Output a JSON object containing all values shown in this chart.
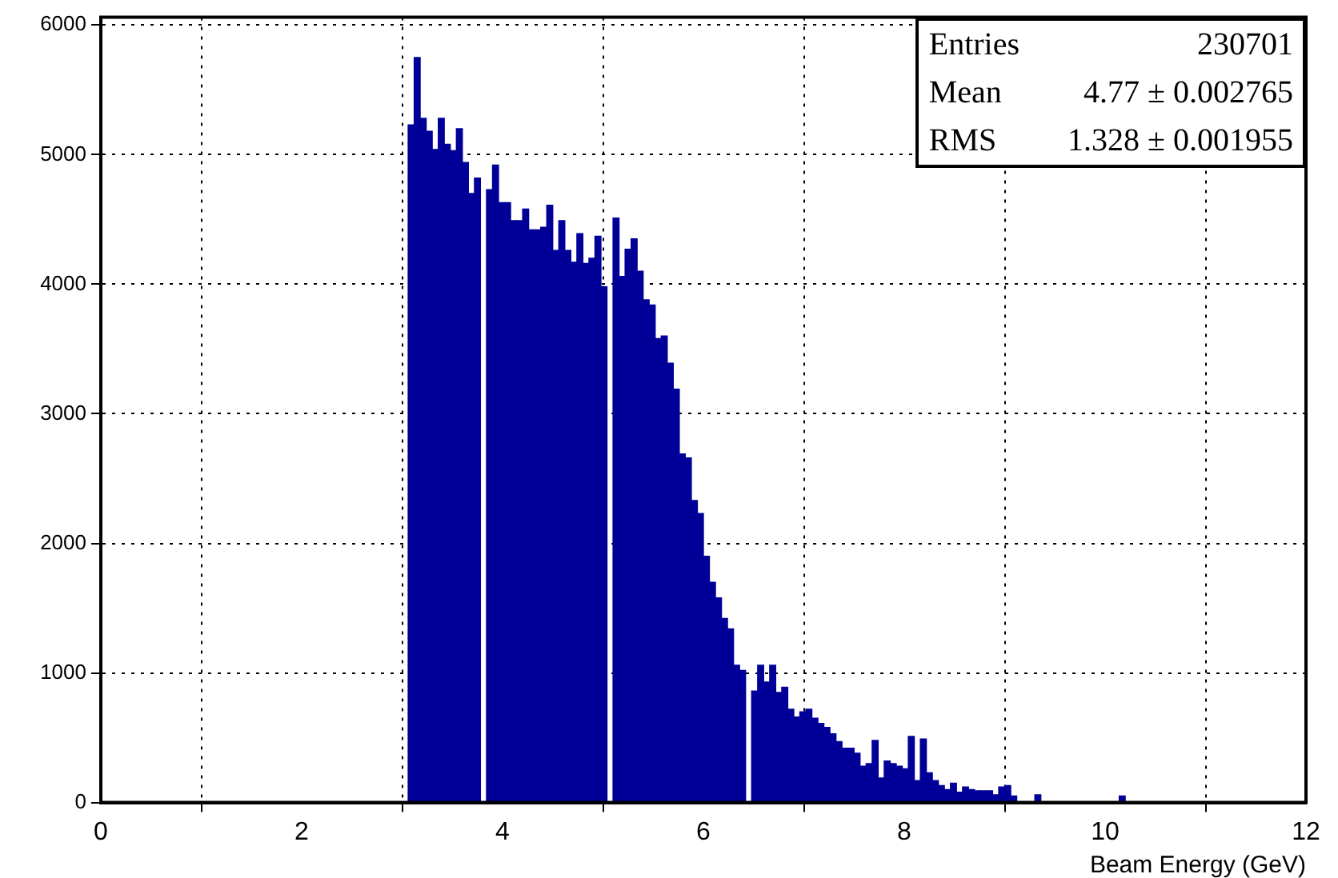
{
  "chart_data": {
    "type": "histogram",
    "xlabel": "Beam Energy (GeV)",
    "annotations": [
      "Entries",
      "230701",
      "Mean",
      "4.77 ± 0.002765",
      "RMS",
      "1.328 ± 0.001955"
    ],
    "color": "#000099",
    "bins": [
      3.06,
      3.12,
      3.18,
      3.24,
      3.3,
      3.36,
      3.42,
      3.48,
      3.54,
      3.6,
      3.66,
      3.72,
      3.78,
      3.84,
      3.9,
      3.96,
      4.02,
      4.08,
      4.14,
      4.2,
      4.26,
      4.32,
      4.38,
      4.44,
      4.5,
      4.56,
      4.62,
      4.68,
      4.74,
      4.8,
      4.86,
      4.92,
      4.98,
      5.04,
      5.1,
      5.16,
      5.22,
      5.28,
      5.34,
      5.4,
      5.46,
      5.52,
      5.58,
      5.64,
      5.7,
      5.76,
      5.82,
      5.88,
      5.94,
      6,
      6.06,
      6.12,
      6.18,
      6.24,
      6.3,
      6.36,
      6.42,
      6.48,
      6.54,
      6.6,
      6.66,
      6.72,
      6.78,
      6.84,
      6.9,
      6.96,
      7.02,
      7.08,
      7.14,
      7.2,
      7.26,
      7.32,
      7.38,
      7.44,
      7.5,
      7.56,
      7.62,
      7.68,
      7.74,
      7.8,
      7.86,
      7.92,
      7.98,
      8.04,
      8.1,
      8.16,
      8.22,
      8.28,
      8.34,
      8.4,
      8.46,
      8.52,
      8.58,
      8.64,
      8.7,
      8.76,
      8.82,
      8.88,
      8.94,
      9,
      9.06,
      9.12,
      9.18,
      9.24,
      9.3,
      9.36,
      9.42,
      9.48,
      9.54,
      9.6,
      9.66,
      9.72,
      9.78,
      9.84,
      9.9,
      9.96,
      10.02,
      10.08,
      10.14,
      10.2
    ],
    "values": [
      5230,
      5750,
      5280,
      5180,
      5040,
      5280,
      5080,
      5030,
      5200,
      4940,
      4700,
      4820,
      0,
      4730,
      4920,
      4630,
      4630,
      4490,
      4490,
      4580,
      4420,
      4420,
      4440,
      4610,
      4260,
      4490,
      4260,
      4170,
      4390,
      4160,
      4200,
      4370,
      3980,
      0,
      4510,
      4060,
      4270,
      4350,
      4100,
      3880,
      3840,
      3580,
      3600,
      3390,
      3190,
      2690,
      2660,
      2330,
      2230,
      1900,
      1700,
      1580,
      1420,
      1340,
      1060,
      1020,
      0,
      860,
      1060,
      930,
      1060,
      850,
      890,
      720,
      660,
      700,
      720,
      650,
      610,
      580,
      530,
      470,
      420,
      420,
      380,
      280,
      300,
      480,
      190,
      320,
      300,
      280,
      260,
      510,
      170,
      490,
      230,
      170,
      130,
      100,
      150,
      80,
      120,
      100,
      90,
      90,
      90,
      60,
      120,
      130,
      50,
      0,
      0,
      0,
      60,
      0,
      0,
      0,
      0,
      0,
      0,
      0,
      0,
      0,
      0,
      0,
      0,
      0,
      50
    ],
    "xlim": [
      0,
      12
    ],
    "xticks": [
      0,
      2,
      4,
      6,
      8,
      10,
      12
    ],
    "ylim": [
      0,
      6060
    ],
    "yticks": [
      0,
      1000,
      2000,
      3000,
      4000,
      5000,
      6000
    ],
    "grid": true,
    "legend": false
  }
}
